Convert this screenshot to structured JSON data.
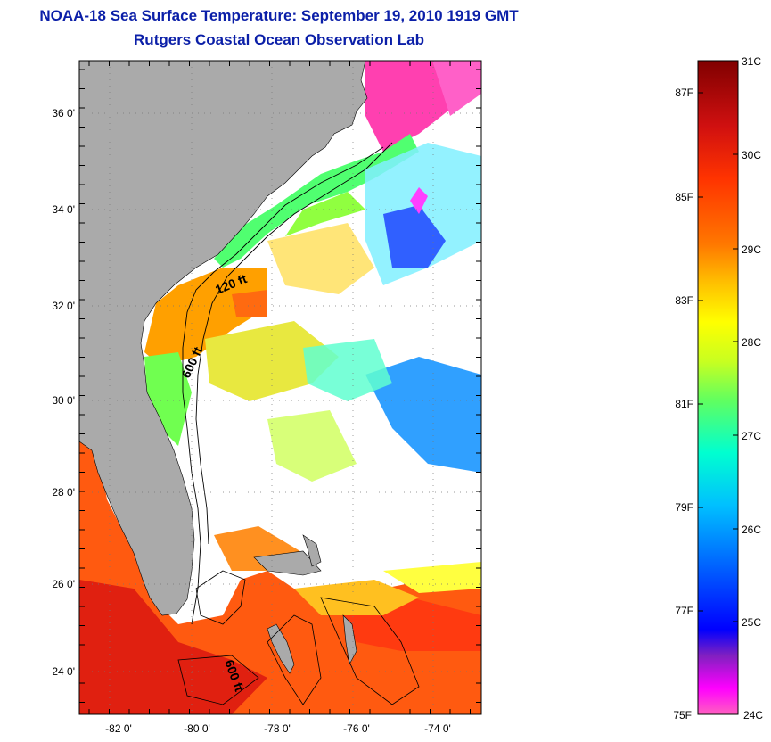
{
  "header": {
    "title": "NOAA-18 Sea Surface Temperature:  September 19, 2010 1919 GMT",
    "subtitle": "Rutgers Coastal Ocean Observation Lab"
  },
  "map": {
    "lat_labels": [
      "36 0'",
      "34 0'",
      "32 0'",
      "30 0'",
      "28 0'",
      "26 0'",
      "24 0'"
    ],
    "lon_labels": [
      "-82 0'",
      "-80 0'",
      "-78 0'",
      "-76 0'",
      "-74 0'"
    ],
    "lat_range": [
      23,
      37
    ],
    "lon_range": [
      -83,
      -73
    ],
    "contour_labels": [
      {
        "text": "120 ft"
      },
      {
        "text": "600 ft"
      },
      {
        "text": "600 ft"
      }
    ],
    "land_color": "#aaaaaa",
    "nodata_color": "#ffffff"
  },
  "colorbar": {
    "celsius_labels": [
      "31C",
      "30C",
      "29C",
      "28C",
      "27C",
      "26C",
      "25C",
      "24C"
    ],
    "fahrenheit_labels": [
      "87F",
      "85F",
      "83F",
      "81F",
      "79F",
      "77F",
      "75F"
    ],
    "range_c": [
      24,
      31
    ],
    "colors": [
      "#800000",
      "#d01010",
      "#ff3300",
      "#ff7700",
      "#ffc000",
      "#ffff00",
      "#c8ff20",
      "#60ff60",
      "#00ffd0",
      "#00c0ff",
      "#0070ff",
      "#0000ff",
      "#8020c0",
      "#ff00ff",
      "#ff60c0"
    ]
  }
}
